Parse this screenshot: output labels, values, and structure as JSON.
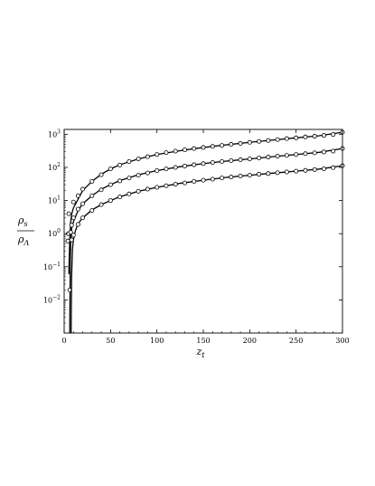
{
  "chart_data": {
    "type": "line",
    "title": "",
    "xlabel": {
      "main": "z",
      "sub": "t"
    },
    "ylabel": {
      "numerator": "ρ",
      "numerator_sub": "s",
      "denominator": "ρ",
      "denominator_sub": "Λ"
    },
    "xlim": [
      0,
      300
    ],
    "ylim": [
      0.001,
      1400
    ],
    "yscale": "log",
    "grid": false,
    "legend": "none",
    "x_ticks": [
      "0",
      "50",
      "100",
      "150",
      "200",
      "250",
      "300"
    ],
    "y_ticks": [
      {
        "base": "10",
        "exp": "3"
      },
      {
        "base": "10",
        "exp": "2"
      },
      {
        "base": "10",
        "exp": "1"
      },
      {
        "base": "10",
        "exp": "0"
      },
      {
        "base": "10",
        "exp": "−1"
      },
      {
        "base": "10",
        "exp": "−2"
      }
    ],
    "series": [
      {
        "line_points": [
          [
            5,
            0.06
          ],
          [
            6,
            0.6
          ],
          [
            7,
            2.2
          ],
          [
            8,
            3.8
          ],
          [
            10,
            6
          ],
          [
            15,
            11
          ],
          [
            20,
            20
          ],
          [
            30,
            38
          ],
          [
            40,
            62
          ],
          [
            50,
            90
          ],
          [
            60,
            120
          ],
          [
            80,
            180
          ],
          [
            100,
            245
          ],
          [
            125,
            320
          ],
          [
            150,
            400
          ],
          [
            175,
            480
          ],
          [
            200,
            570
          ],
          [
            225,
            670
          ],
          [
            250,
            780
          ],
          [
            275,
            900
          ],
          [
            300,
            1150
          ]
        ],
        "markers": [
          [
            4,
            0.6
          ],
          [
            4.5,
            1.0
          ],
          [
            5,
            4
          ],
          [
            10,
            9
          ],
          [
            15,
            14
          ],
          [
            20,
            22
          ],
          [
            30,
            38
          ],
          [
            40,
            60
          ],
          [
            50,
            90
          ],
          [
            60,
            118
          ],
          [
            70,
            150
          ],
          [
            80,
            180
          ],
          [
            90,
            210
          ],
          [
            100,
            245
          ],
          [
            110,
            280
          ],
          [
            120,
            310
          ],
          [
            130,
            340
          ],
          [
            140,
            370
          ],
          [
            150,
            400
          ],
          [
            160,
            430
          ],
          [
            170,
            460
          ],
          [
            180,
            495
          ],
          [
            190,
            530
          ],
          [
            200,
            570
          ],
          [
            210,
            610
          ],
          [
            220,
            650
          ],
          [
            230,
            690
          ],
          [
            240,
            740
          ],
          [
            250,
            780
          ],
          [
            260,
            830
          ],
          [
            270,
            870
          ],
          [
            280,
            920
          ],
          [
            290,
            980
          ],
          [
            300,
            1150
          ]
        ]
      },
      {
        "line_points": [
          [
            6,
            0.001
          ],
          [
            6.5,
            0.08
          ],
          [
            7,
            0.5
          ],
          [
            8,
            1.4
          ],
          [
            10,
            2.3
          ],
          [
            15,
            5
          ],
          [
            20,
            8
          ],
          [
            30,
            14
          ],
          [
            40,
            22
          ],
          [
            50,
            30
          ],
          [
            60,
            40
          ],
          [
            80,
            60
          ],
          [
            100,
            80
          ],
          [
            125,
            105
          ],
          [
            150,
            130
          ],
          [
            175,
            155
          ],
          [
            200,
            180
          ],
          [
            225,
            210
          ],
          [
            250,
            245
          ],
          [
            275,
            285
          ],
          [
            300,
            370
          ]
        ],
        "markers": [
          [
            6,
            0.02
          ],
          [
            7,
            1.1
          ],
          [
            8,
            1.8
          ],
          [
            10,
            3
          ],
          [
            15,
            5.5
          ],
          [
            20,
            8
          ],
          [
            30,
            14
          ],
          [
            40,
            21
          ],
          [
            50,
            30
          ],
          [
            60,
            39
          ],
          [
            70,
            48
          ],
          [
            80,
            58
          ],
          [
            90,
            68
          ],
          [
            100,
            80
          ],
          [
            110,
            90
          ],
          [
            120,
            100
          ],
          [
            130,
            110
          ],
          [
            140,
            120
          ],
          [
            150,
            130
          ],
          [
            160,
            140
          ],
          [
            170,
            150
          ],
          [
            180,
            160
          ],
          [
            190,
            170
          ],
          [
            200,
            180
          ],
          [
            210,
            193
          ],
          [
            220,
            205
          ],
          [
            230,
            218
          ],
          [
            240,
            230
          ],
          [
            250,
            245
          ],
          [
            260,
            260
          ],
          [
            270,
            275
          ],
          [
            280,
            292
          ],
          [
            290,
            310
          ],
          [
            300,
            370
          ]
        ]
      },
      {
        "line_points": [
          [
            7.5,
            0.001
          ],
          [
            8,
            0.05
          ],
          [
            9,
            0.35
          ],
          [
            10,
            0.65
          ],
          [
            12,
            1.2
          ],
          [
            15,
            2
          ],
          [
            20,
            3
          ],
          [
            30,
            5.2
          ],
          [
            40,
            7.5
          ],
          [
            50,
            10
          ],
          [
            60,
            13
          ],
          [
            80,
            19
          ],
          [
            100,
            25
          ],
          [
            125,
            33
          ],
          [
            150,
            41
          ],
          [
            175,
            50
          ],
          [
            200,
            58
          ],
          [
            225,
            67
          ],
          [
            250,
            77
          ],
          [
            275,
            89
          ],
          [
            300,
            112
          ]
        ],
        "markers": [
          [
            8,
            0.65
          ],
          [
            10,
            0.9
          ],
          [
            15,
            1.9
          ],
          [
            20,
            3
          ],
          [
            30,
            5
          ],
          [
            40,
            7.5
          ],
          [
            50,
            10
          ],
          [
            60,
            12.8
          ],
          [
            70,
            15.8
          ],
          [
            80,
            19
          ],
          [
            90,
            22
          ],
          [
            100,
            25
          ],
          [
            110,
            28
          ],
          [
            120,
            31
          ],
          [
            130,
            34
          ],
          [
            140,
            38
          ],
          [
            150,
            41
          ],
          [
            160,
            44
          ],
          [
            170,
            48
          ],
          [
            180,
            51
          ],
          [
            190,
            55
          ],
          [
            200,
            58
          ],
          [
            210,
            62
          ],
          [
            220,
            65
          ],
          [
            230,
            69
          ],
          [
            240,
            73
          ],
          [
            250,
            77
          ],
          [
            260,
            81
          ],
          [
            270,
            86
          ],
          [
            280,
            91
          ],
          [
            290,
            98
          ],
          [
            300,
            112
          ]
        ]
      }
    ]
  }
}
